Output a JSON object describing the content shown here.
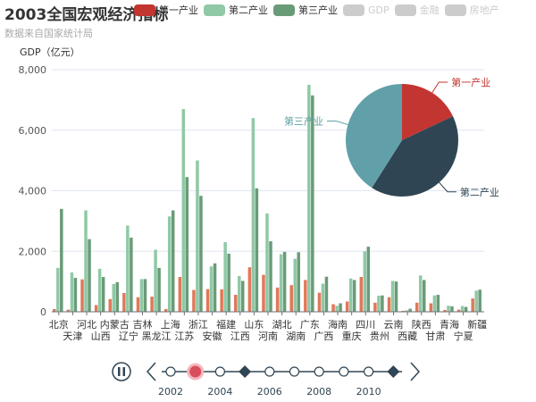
{
  "header": {
    "title": "2003全国宏观经济指标",
    "subtitle": "数据来自国家统计局"
  },
  "legend": [
    {
      "label": "第一产业",
      "color": "#c23531",
      "active": true
    },
    {
      "label": "第二产业",
      "color": "#8fc9a6",
      "active": true
    },
    {
      "label": "第三产业",
      "color": "#6a9b78",
      "active": true
    },
    {
      "label": "GDP",
      "color": "#cccccc",
      "active": false
    },
    {
      "label": "金融",
      "color": "#cccccc",
      "active": false
    },
    {
      "label": "房地产",
      "color": "#cccccc",
      "active": false
    }
  ],
  "chart_data": [
    {
      "type": "bar",
      "ylabel": "GDP（亿元）",
      "ylim": [
        0,
        8000
      ],
      "yticks": [
        "0",
        "2,000",
        "4,000",
        "6,000",
        "8,000"
      ],
      "grid": true,
      "categories": [
        "北京",
        "天津",
        "河北",
        "山西",
        "内蒙古",
        "辽宁",
        "吉林",
        "黑龙江",
        "上海",
        "江苏",
        "浙江",
        "安徽",
        "福建",
        "江西",
        "山东",
        "河南",
        "湖北",
        "湖南",
        "广东",
        "广西",
        "海南",
        "重庆",
        "四川",
        "贵州",
        "云南",
        "西藏",
        "陕西",
        "甘肃",
        "青海",
        "宁夏",
        "新疆"
      ],
      "series": [
        {
          "name": "第一产业",
          "color": "#e0785a",
          "values": [
            90,
            70,
            1070,
            220,
            420,
            620,
            480,
            500,
            90,
            1150,
            720,
            750,
            740,
            560,
            1470,
            1220,
            800,
            880,
            1050,
            630,
            250,
            340,
            1150,
            300,
            480,
            30,
            300,
            280,
            60,
            70,
            440
          ]
        },
        {
          "name": "第二产业",
          "color": "#8fc9a6",
          "values": [
            1450,
            1300,
            3350,
            1420,
            920,
            2850,
            1080,
            2050,
            3150,
            6700,
            5000,
            1500,
            2300,
            1180,
            6400,
            3250,
            1900,
            1750,
            7500,
            930,
            200,
            1100,
            2000,
            530,
            1020,
            50,
            1200,
            540,
            200,
            190,
            700
          ]
        },
        {
          "name": "第三产业",
          "color": "#6a9b78",
          "values": [
            3400,
            1120,
            2400,
            1150,
            980,
            2450,
            1080,
            1450,
            3350,
            4450,
            3830,
            1600,
            1920,
            1020,
            4080,
            2330,
            1980,
            1970,
            7150,
            1160,
            280,
            1050,
            2150,
            540,
            1000,
            100,
            1050,
            560,
            180,
            160,
            730
          ]
        }
      ]
    },
    {
      "type": "pie",
      "categories": [
        "第一产业",
        "第二产业",
        "第三产业"
      ],
      "values": [
        18,
        41,
        41
      ],
      "colors": [
        "#c23531",
        "#2f4554",
        "#61a0a8"
      ]
    }
  ],
  "timeline": {
    "years": [
      "2002",
      "2003",
      "2004",
      "2005",
      "2006",
      "2007",
      "2008",
      "2009",
      "2010",
      "2011"
    ],
    "labels": [
      "2002",
      "2004",
      "2006",
      "2008",
      "2010"
    ],
    "current": "2003",
    "diamond_years": [
      "2005",
      "2011"
    ]
  }
}
